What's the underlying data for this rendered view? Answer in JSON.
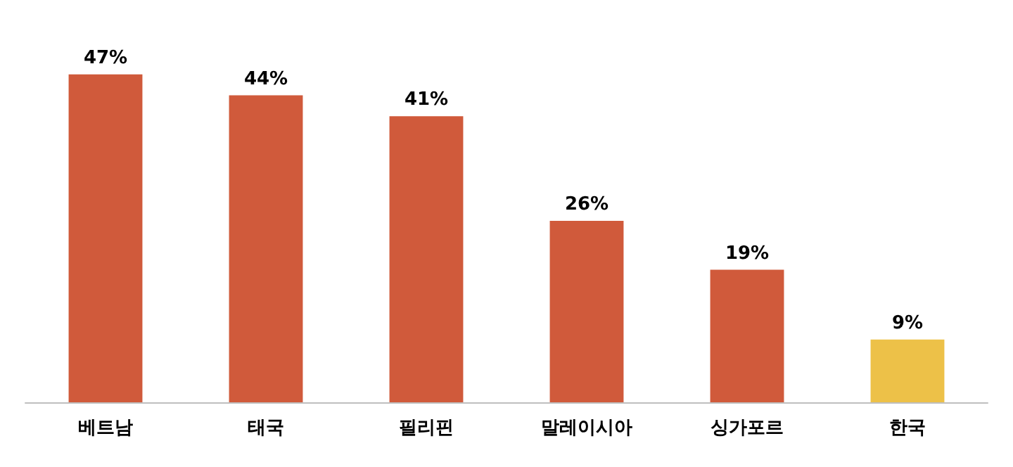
{
  "chart_data": {
    "type": "bar",
    "categories": [
      "베트남",
      "태국",
      "필리핀",
      "말레이시아",
      "싱가포르",
      "한국"
    ],
    "values": [
      47,
      44,
      41,
      26,
      19,
      9
    ],
    "colors": [
      "#d05a3b",
      "#d05a3b",
      "#d05a3b",
      "#d05a3b",
      "#d05a3b",
      "#edc148"
    ],
    "value_labels": [
      "47%",
      "44%",
      "41%",
      "26%",
      "19%",
      "9%"
    ]
  }
}
